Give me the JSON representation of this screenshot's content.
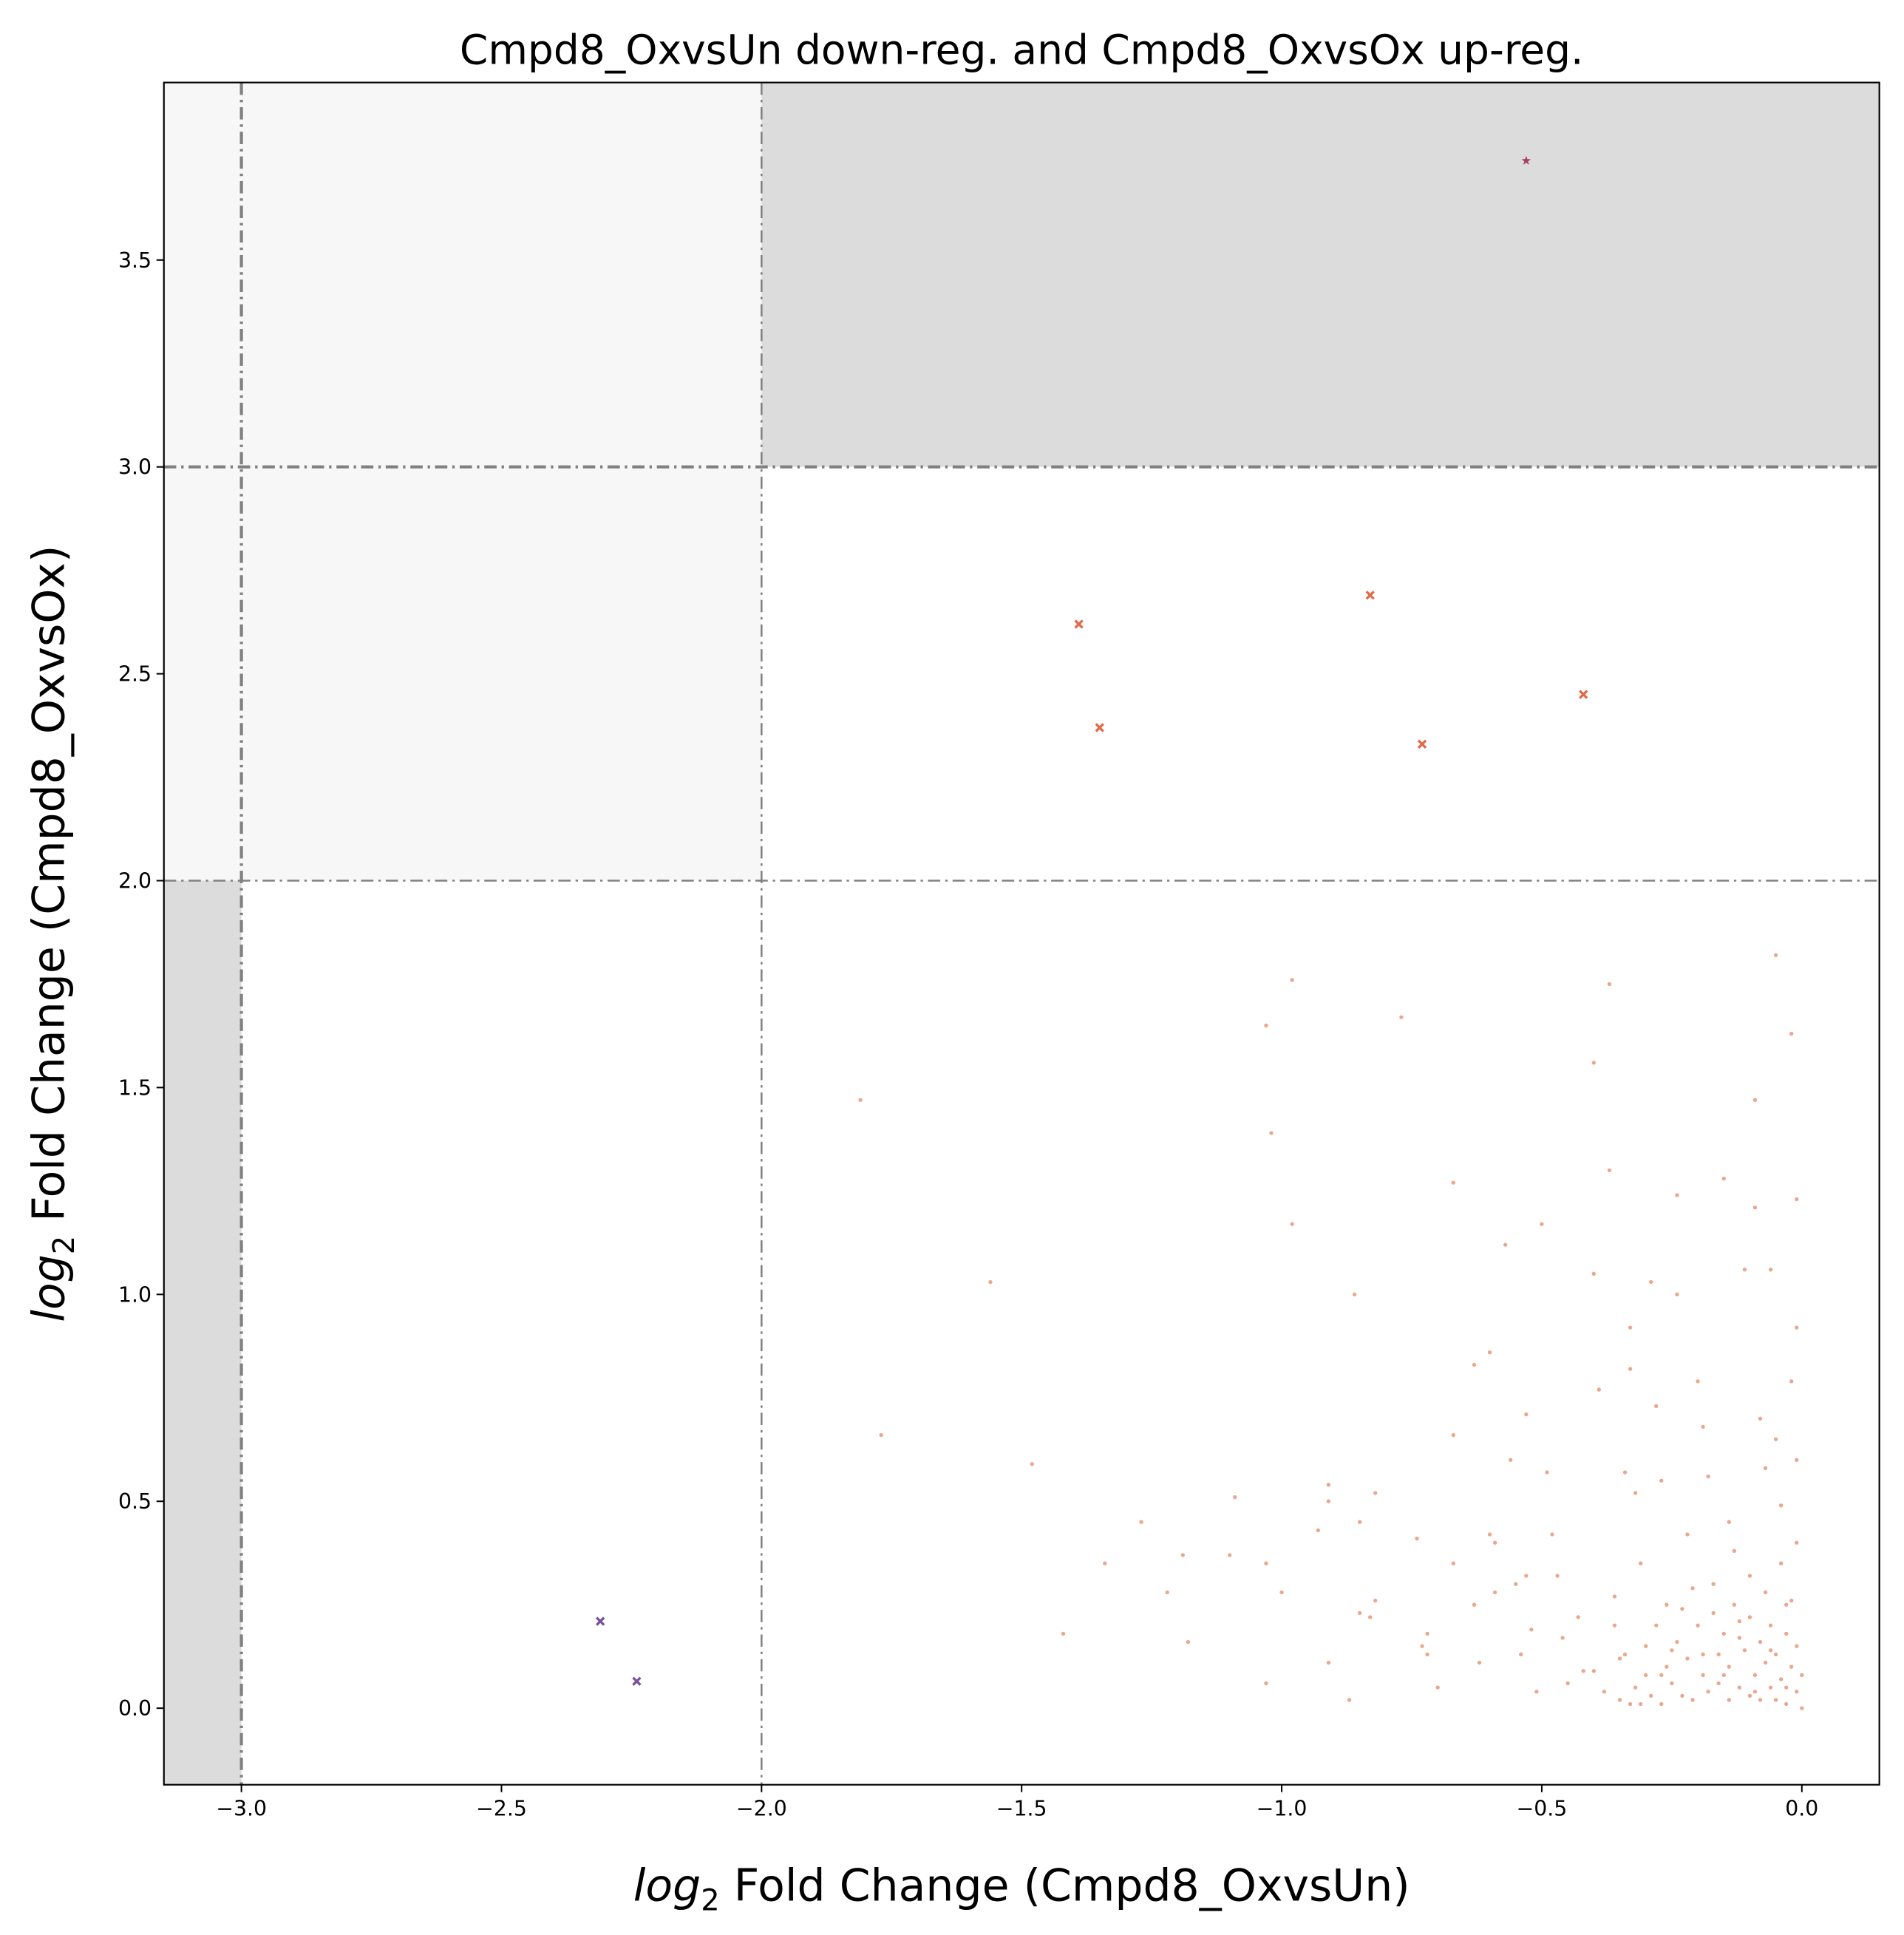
{
  "chart_data": {
    "type": "scatter",
    "title": "Cmpd8_OxvsUn down-reg. and Cmpd8_OxvsOx up-reg.",
    "xlabel": {
      "italic": "log",
      "sub": "2",
      "text": " Fold Change (Cmpd8_OxvsUn)"
    },
    "ylabel": {
      "italic": "log",
      "sub": "2",
      "text": " Fold Change (Cmpd8_OxvsOx)"
    },
    "xlim": [
      -3.149,
      0.149
    ],
    "ylim": [
      -0.185,
      3.929
    ],
    "xticks": [
      {
        "value": -3,
        "label": "−3.0"
      },
      {
        "value": -2.5,
        "label": "−2.5"
      },
      {
        "value": -2,
        "label": "−2.0"
      },
      {
        "value": -1.5,
        "label": "−1.5"
      },
      {
        "value": -1,
        "label": "−1.0"
      },
      {
        "value": -0.5,
        "label": "−0.5"
      },
      {
        "value": 0,
        "label": "0.0"
      }
    ],
    "yticks": [
      {
        "value": 0,
        "label": "0.0"
      },
      0.5,
      {
        "value": 1,
        "label": "1.0"
      },
      1.5,
      {
        "value": 2,
        "label": "2.0"
      },
      2.5,
      {
        "value": 3,
        "label": "3.0"
      },
      3.5
    ],
    "regions": [
      {
        "x": [
          -2,
          0.149
        ],
        "y": [
          3,
          3.929
        ],
        "color": "#dcdcdc"
      },
      {
        "x": [
          -3.149,
          -2
        ],
        "y": [
          2,
          3.929
        ],
        "color": "#f7f7f7"
      },
      {
        "x": [
          -3.149,
          -3
        ],
        "y": [
          -0.185,
          2
        ],
        "color": "#dcdcdc"
      }
    ],
    "threshold_lines": [
      {
        "axis": "x",
        "value": -3,
        "width": 2.5
      },
      {
        "axis": "x",
        "value": -2,
        "width": 1.5
      },
      {
        "axis": "y",
        "value": 2,
        "width": 1.5
      },
      {
        "axis": "y",
        "value": 3,
        "width": 2.5
      }
    ],
    "series": [
      {
        "color": "#e0825e",
        "marker": "dot",
        "x": [
          -1.81,
          -1.56,
          -1.77,
          -1.48,
          -1.27,
          -1.34,
          -1.42,
          -1.22,
          -1.19,
          -1.18,
          -1.09,
          -1.1,
          -1.03,
          -1.02,
          -0.98,
          -0.98,
          -1.03,
          -1.0,
          -1.03,
          -0.93,
          -0.91,
          -0.91,
          -0.91,
          -0.87,
          -0.86,
          -0.85,
          -0.85,
          -0.83,
          -0.82,
          -0.82,
          -0.77,
          -0.74,
          -0.73,
          -0.72,
          -0.72,
          -0.7,
          -0.67,
          -0.67,
          -0.67,
          -0.63,
          -0.63,
          -0.62,
          -0.6,
          -0.6,
          -0.59,
          -0.59,
          -0.57,
          -0.56,
          -0.55,
          -0.54,
          -0.53,
          -0.53,
          -0.52,
          -0.51,
          -0.5,
          -0.49,
          -0.48,
          -0.47,
          -0.46,
          -0.45,
          -0.43,
          -0.42,
          -0.4,
          -0.4,
          -0.39,
          -0.37,
          -0.37,
          -0.36,
          -0.35,
          -0.34,
          -0.33,
          -0.33,
          -0.32,
          -0.31,
          -0.3,
          -0.29,
          -0.28,
          -0.27,
          -0.26,
          -0.25,
          -0.24,
          -0.24,
          -0.22,
          -0.21,
          -0.2,
          -0.19,
          -0.18,
          -0.17,
          -0.16,
          -0.15,
          -0.14,
          -0.13,
          -0.12,
          -0.11,
          -0.1,
          -0.09,
          -0.09,
          -0.08,
          -0.07,
          -0.06,
          -0.05,
          -0.05,
          -0.04,
          -0.03,
          -0.02,
          -0.02,
          -0.01,
          -0.01,
          -0.01,
          -0.01,
          -0.35,
          -0.33,
          -0.32,
          -0.3,
          -0.29,
          -0.28,
          -0.27,
          -0.26,
          -0.25,
          -0.24,
          -0.23,
          -0.22,
          -0.21,
          -0.2,
          -0.19,
          -0.18,
          -0.17,
          -0.16,
          -0.15,
          -0.14,
          -0.14,
          -0.13,
          -0.12,
          -0.11,
          -0.1,
          -0.1,
          -0.09,
          -0.08,
          -0.08,
          -0.07,
          -0.07,
          -0.06,
          -0.06,
          -0.05,
          -0.05,
          -0.04,
          -0.04,
          -0.03,
          -0.03,
          -0.02,
          -0.02,
          -0.01,
          -0.01,
          0,
          0,
          -0.38,
          -0.4,
          -0.36,
          -0.34,
          -0.31,
          -0.27,
          -0.23,
          -0.19,
          -0.15,
          -0.12,
          -0.09,
          -0.06,
          -0.03
        ],
        "y": [
          1.47,
          1.03,
          0.66,
          0.59,
          0.45,
          0.35,
          0.18,
          0.28,
          0.37,
          0.16,
          0.51,
          0.37,
          1.65,
          1.39,
          1.76,
          1.17,
          0.35,
          0.28,
          0.06,
          0.43,
          0.54,
          0.5,
          0.11,
          0.02,
          1.0,
          0.45,
          0.23,
          0.22,
          0.52,
          0.26,
          1.67,
          0.41,
          0.15,
          0.13,
          0.18,
          0.05,
          1.27,
          0.66,
          0.35,
          0.83,
          0.25,
          0.11,
          0.86,
          0.42,
          0.28,
          0.4,
          1.12,
          0.6,
          0.3,
          0.13,
          0.71,
          0.32,
          0.19,
          0.04,
          1.17,
          0.57,
          0.42,
          0.32,
          0.17,
          0.06,
          0.22,
          0.09,
          1.56,
          1.05,
          0.77,
          1.75,
          1.3,
          0.27,
          0.12,
          0.57,
          0.92,
          0.82,
          0.52,
          0.35,
          0.08,
          1.03,
          0.73,
          0.55,
          0.25,
          0.14,
          1.24,
          1.0,
          0.42,
          0.29,
          0.79,
          0.68,
          0.56,
          0.23,
          0.13,
          1.28,
          0.45,
          0.38,
          0.21,
          1.06,
          0.32,
          1.47,
          1.21,
          0.7,
          0.58,
          1.06,
          1.82,
          0.65,
          0.49,
          0.25,
          1.63,
          0.79,
          0.6,
          1.23,
          0.92,
          0.4,
          0.02,
          0.01,
          0.05,
          0.15,
          0.03,
          0.2,
          0.01,
          0.1,
          0.06,
          0.16,
          0.03,
          0.12,
          0.02,
          0.2,
          0.08,
          0.04,
          0.3,
          0.06,
          0.18,
          0.02,
          0.1,
          0.25,
          0.05,
          0.14,
          0.03,
          0.22,
          0.08,
          0.16,
          0.02,
          0.28,
          0.11,
          0.05,
          0.2,
          0.02,
          0.13,
          0.35,
          0.07,
          0.18,
          0.01,
          0.1,
          0.26,
          0.04,
          0.15,
          0,
          0.08,
          0.04,
          0.09,
          0.2,
          0.13,
          0.01,
          0.08,
          0.24,
          0.13,
          0.08,
          0.17,
          0.04,
          0.14,
          0.05
        ]
      },
      {
        "color": "#e06a48",
        "marker": "x",
        "x": [
          -1.39,
          -0.83,
          -1.35,
          -0.73,
          -0.42
        ],
        "y": [
          2.62,
          2.69,
          2.37,
          2.33,
          2.45
        ]
      },
      {
        "color": "#7b4fa0",
        "marker": "x",
        "x": [
          -2.31,
          -2.24
        ],
        "y": [
          0.21,
          0.065
        ]
      },
      {
        "color": "#a8405e",
        "marker": "star",
        "x": [
          -0.53
        ],
        "y": [
          3.74
        ]
      }
    ]
  }
}
